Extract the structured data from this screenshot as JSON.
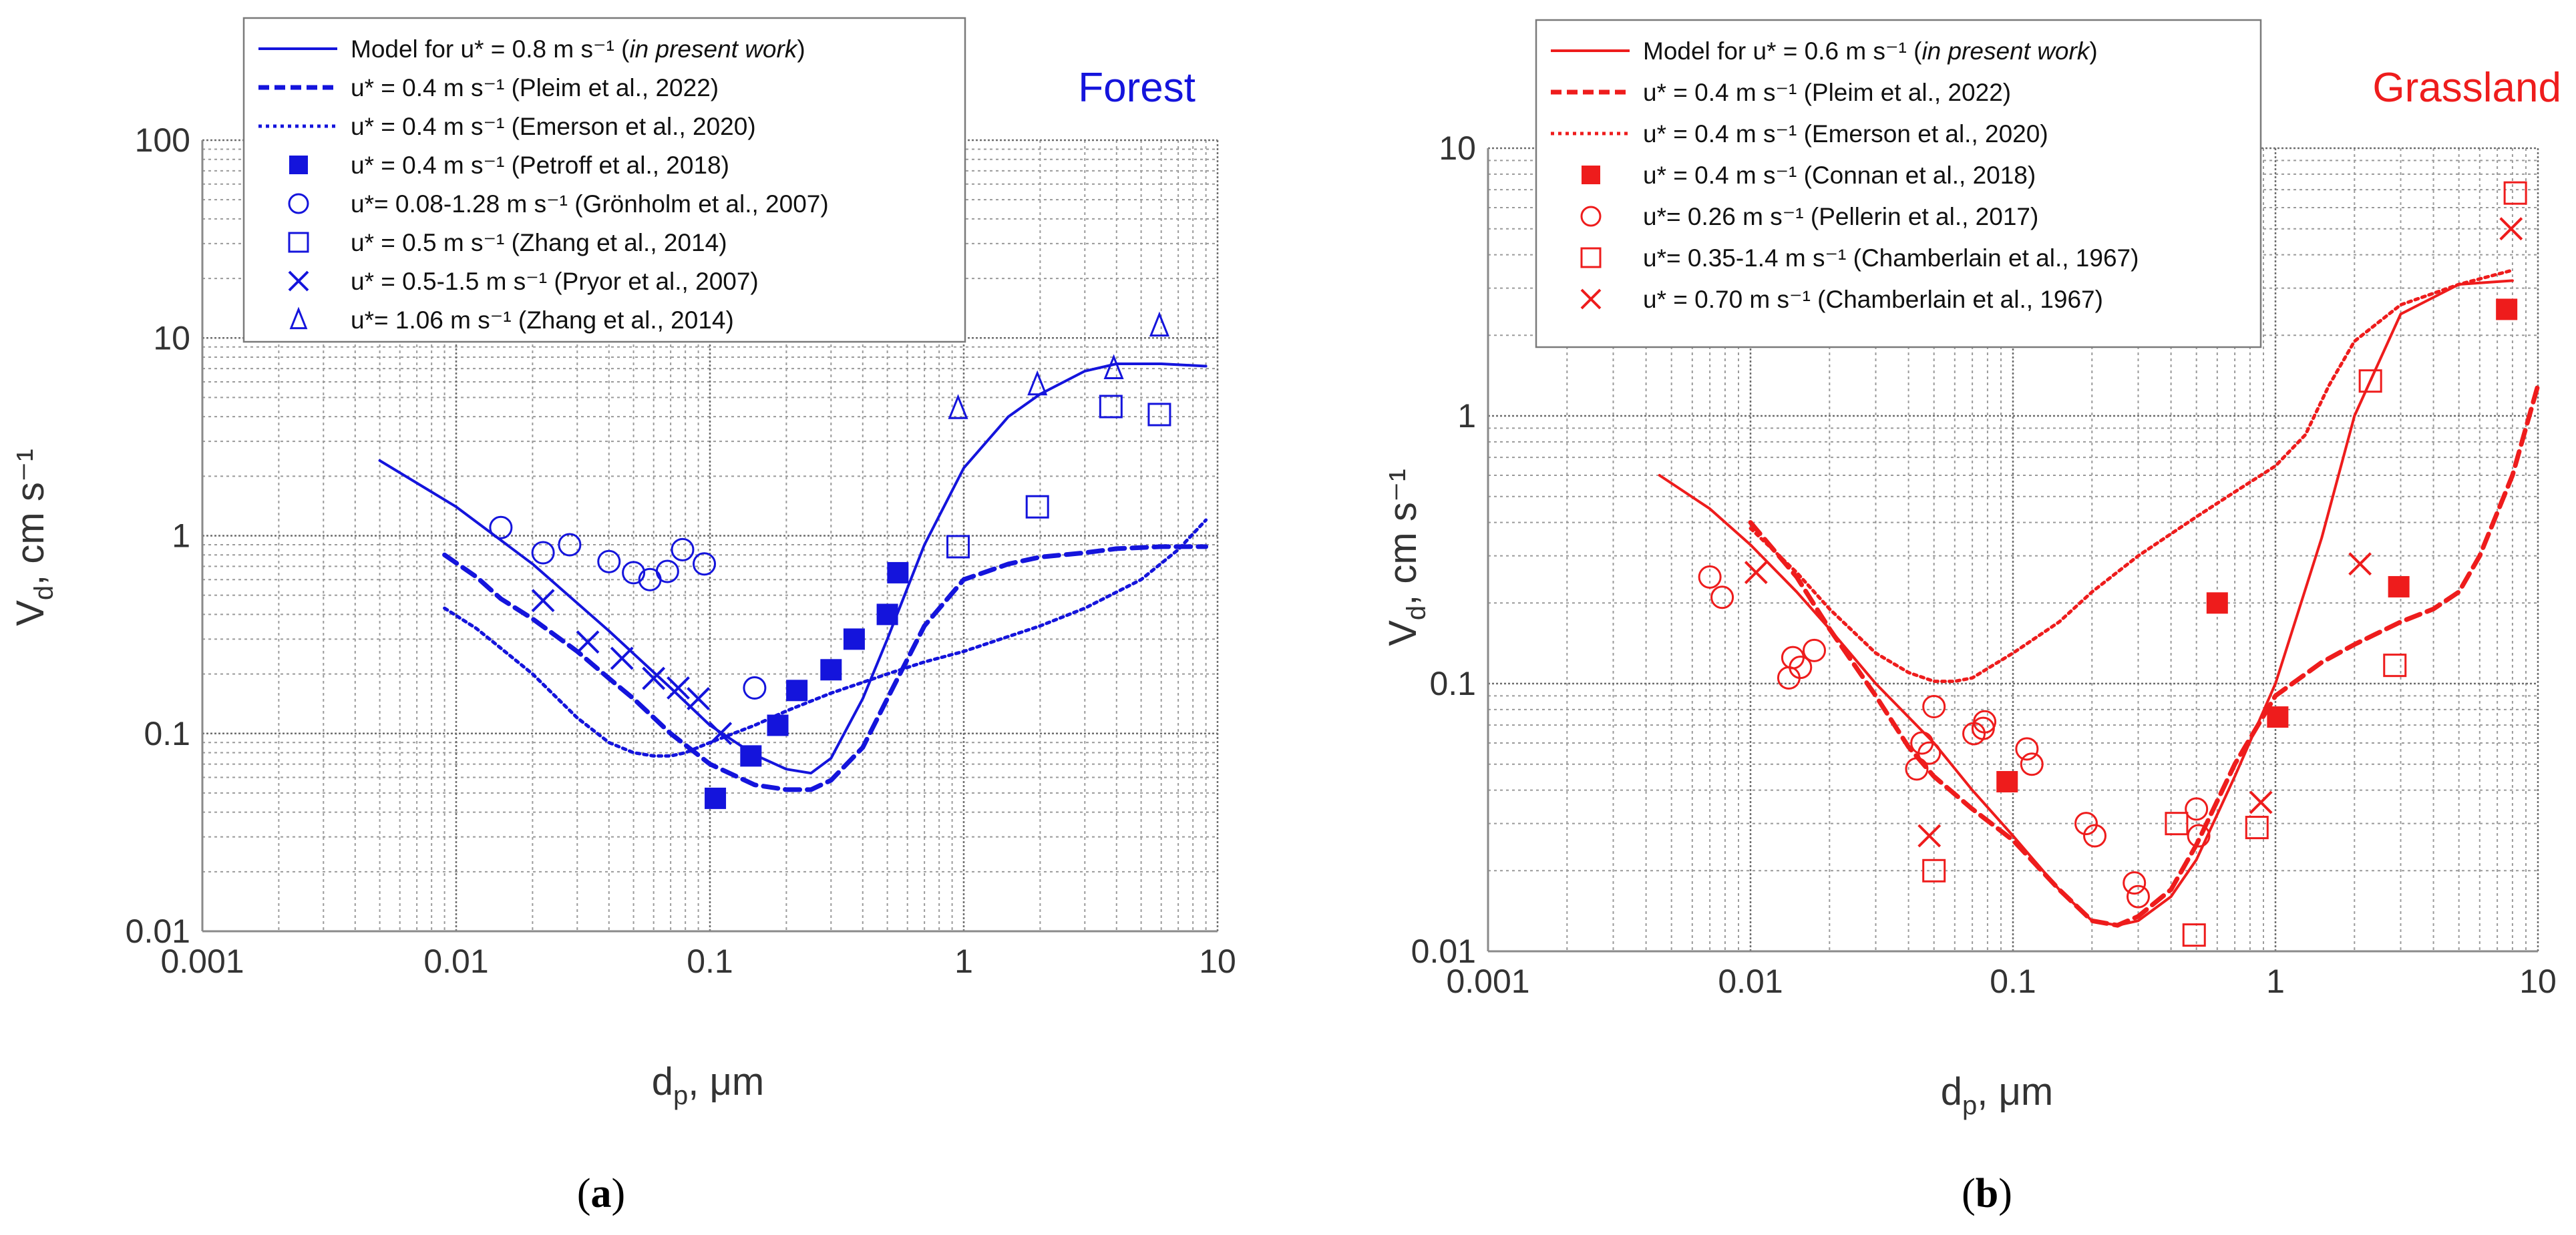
{
  "chart_data": [
    {
      "type": "scatter",
      "panel_label": "a",
      "title": "Forest",
      "color": "#1414dc",
      "xlabel": "d",
      "xlabel_sub": "p",
      "xlabel_unit": ", μm",
      "ylabel": "V",
      "ylabel_sub": "d",
      "ylabel_unit": ", cm s⁻¹",
      "xscale": "log",
      "yscale": "log",
      "xlim": [
        0.001,
        10
      ],
      "ylim": [
        0.01,
        100
      ],
      "x_ticks": [
        {
          "v": 0.001,
          "label": "0.001"
        },
        {
          "v": 0.01,
          "label": "0.01"
        },
        {
          "v": 0.1,
          "label": "0.1"
        },
        {
          "v": 1,
          "label": "1"
        },
        {
          "v": 10,
          "label": "10"
        }
      ],
      "y_ticks": [
        {
          "v": 0.01,
          "label": "0.01"
        },
        {
          "v": 0.1,
          "label": "0.1"
        },
        {
          "v": 1,
          "label": "1"
        },
        {
          "v": 10,
          "label": "10"
        },
        {
          "v": 100,
          "label": "100"
        }
      ],
      "legend_position": "top-left",
      "series": [
        {
          "name": "Model for u* = 0.8 m s⁻¹",
          "note": "in present work",
          "marker": "line-solid",
          "x": [
            0.005,
            0.01,
            0.02,
            0.04,
            0.07,
            0.1,
            0.15,
            0.2,
            0.25,
            0.3,
            0.4,
            0.5,
            0.7,
            1,
            1.5,
            2,
            3,
            4,
            6,
            9
          ],
          "y": [
            2.4,
            1.4,
            0.72,
            0.33,
            0.17,
            0.11,
            0.078,
            0.066,
            0.063,
            0.075,
            0.15,
            0.3,
            0.9,
            2.2,
            4.0,
            5.2,
            6.8,
            7.4,
            7.4,
            7.2
          ]
        },
        {
          "name": "u* = 0.4 m s⁻¹ (Pleim et al., 2022)",
          "marker": "line-dashed",
          "x": [
            0.009,
            0.012,
            0.015,
            0.02,
            0.03,
            0.04,
            0.05,
            0.07,
            0.1,
            0.15,
            0.2,
            0.25,
            0.3,
            0.4,
            0.5,
            0.7,
            1,
            1.5,
            2,
            3,
            4,
            6,
            9
          ],
          "y": [
            0.8,
            0.62,
            0.48,
            0.38,
            0.26,
            0.19,
            0.15,
            0.1,
            0.07,
            0.055,
            0.052,
            0.052,
            0.058,
            0.085,
            0.15,
            0.35,
            0.6,
            0.72,
            0.78,
            0.82,
            0.86,
            0.88,
            0.88
          ]
        },
        {
          "name": "u* = 0.4 m s⁻¹ (Emerson et al., 2020)",
          "marker": "line-dotted",
          "x": [
            0.009,
            0.012,
            0.015,
            0.02,
            0.03,
            0.04,
            0.05,
            0.06,
            0.07,
            0.08,
            0.1,
            0.15,
            0.2,
            0.3,
            0.5,
            0.7,
            1,
            2,
            3,
            5,
            7,
            9
          ],
          "y": [
            0.43,
            0.34,
            0.27,
            0.2,
            0.12,
            0.09,
            0.08,
            0.077,
            0.077,
            0.08,
            0.09,
            0.11,
            0.13,
            0.16,
            0.2,
            0.23,
            0.26,
            0.35,
            0.43,
            0.6,
            0.85,
            1.2
          ]
        },
        {
          "name": "u* = 0.4 m s⁻¹ (Petroff et al., 2018)",
          "marker": "square-filled",
          "x": [
            0.105,
            0.145,
            0.185,
            0.22,
            0.3,
            0.37,
            0.5,
            0.55
          ],
          "y": [
            0.047,
            0.077,
            0.11,
            0.165,
            0.21,
            0.3,
            0.4,
            0.65
          ]
        },
        {
          "name": "u*= 0.08-1.28 m s⁻¹ (Grönholm et al., 2007)",
          "marker": "circle-open",
          "x": [
            0.015,
            0.022,
            0.028,
            0.04,
            0.05,
            0.058,
            0.068,
            0.078,
            0.095,
            0.15
          ],
          "y": [
            1.1,
            0.82,
            0.9,
            0.74,
            0.65,
            0.6,
            0.66,
            0.85,
            0.72,
            0.17
          ]
        },
        {
          "name": "u* = 0.5 m s⁻¹ (Zhang et al., 2014)",
          "marker": "square-open",
          "x": [
            0.95,
            1.95,
            3.8,
            5.9
          ],
          "y": [
            0.88,
            1.4,
            4.5,
            4.1
          ]
        },
        {
          "name": "u* = 0.5-1.5 m s⁻¹ (Pryor et al., 2007)",
          "marker": "cross",
          "x": [
            0.022,
            0.033,
            0.045,
            0.06,
            0.075,
            0.09,
            0.11
          ],
          "y": [
            0.47,
            0.29,
            0.24,
            0.19,
            0.17,
            0.15,
            0.1
          ]
        },
        {
          "name": "u*= 1.06 m s⁻¹ (Zhang et al., 2014)",
          "marker": "triangle-open",
          "x": [
            0.95,
            1.95,
            3.9,
            5.9
          ],
          "y": [
            4.4,
            5.8,
            7.0,
            11.5
          ]
        }
      ]
    },
    {
      "type": "scatter",
      "panel_label": "b",
      "title": "Grassland",
      "color": "#ee1c1c",
      "xlabel": "d",
      "xlabel_sub": "p",
      "xlabel_unit": ", μm",
      "ylabel": "V",
      "ylabel_sub": "d",
      "ylabel_unit": ", cm s⁻¹",
      "xscale": "log",
      "yscale": "log",
      "xlim": [
        0.001,
        10
      ],
      "ylim": [
        0.01,
        10
      ],
      "x_ticks": [
        {
          "v": 0.001,
          "label": "0.001"
        },
        {
          "v": 0.01,
          "label": "0.01"
        },
        {
          "v": 0.1,
          "label": "0.1"
        },
        {
          "v": 1,
          "label": "1"
        },
        {
          "v": 10,
          "label": "10"
        }
      ],
      "y_ticks": [
        {
          "v": 0.01,
          "label": "0.01"
        },
        {
          "v": 0.1,
          "label": "0.1"
        },
        {
          "v": 1,
          "label": "1"
        },
        {
          "v": 10,
          "label": "10"
        }
      ],
      "legend_position": "top-left",
      "series": [
        {
          "name": "Model for u* = 0.6 m s⁻¹",
          "note": "in present work",
          "marker": "line-solid",
          "x": [
            0.0045,
            0.007,
            0.01,
            0.015,
            0.02,
            0.03,
            0.05,
            0.07,
            0.1,
            0.15,
            0.2,
            0.25,
            0.3,
            0.4,
            0.5,
            0.7,
            1,
            1.5,
            2,
            3,
            5,
            8
          ],
          "y": [
            0.6,
            0.45,
            0.33,
            0.22,
            0.16,
            0.1,
            0.06,
            0.04,
            0.027,
            0.017,
            0.013,
            0.0125,
            0.013,
            0.016,
            0.022,
            0.045,
            0.1,
            0.35,
            1.0,
            2.4,
            3.1,
            3.2
          ]
        },
        {
          "name": "u* = 0.4 m s⁻¹ (Pleim et al., 2022)",
          "marker": "line-dashed",
          "x": [
            0.01,
            0.015,
            0.02,
            0.03,
            0.04,
            0.05,
            0.07,
            0.1,
            0.15,
            0.2,
            0.25,
            0.3,
            0.4,
            0.5,
            0.7,
            1,
            1.5,
            2,
            3,
            4,
            5,
            6,
            8,
            10
          ],
          "y": [
            0.4,
            0.25,
            0.16,
            0.09,
            0.058,
            0.045,
            0.034,
            0.026,
            0.017,
            0.013,
            0.0125,
            0.0135,
            0.017,
            0.025,
            0.05,
            0.09,
            0.12,
            0.14,
            0.17,
            0.19,
            0.22,
            0.3,
            0.6,
            1.3
          ]
        },
        {
          "name": "u* = 0.4 m s⁻¹ (Emerson et al., 2020)",
          "marker": "line-dotted",
          "x": [
            0.01,
            0.015,
            0.02,
            0.03,
            0.04,
            0.05,
            0.06,
            0.07,
            0.1,
            0.15,
            0.2,
            0.3,
            0.5,
            0.7,
            1,
            1.3,
            1.6,
            2,
            3,
            5,
            8
          ],
          "y": [
            0.38,
            0.26,
            0.19,
            0.13,
            0.11,
            0.102,
            0.102,
            0.105,
            0.13,
            0.17,
            0.22,
            0.3,
            0.42,
            0.52,
            0.65,
            0.85,
            1.3,
            1.9,
            2.6,
            3.1,
            3.5
          ]
        },
        {
          "name": "u* = 0.4 m s⁻¹ (Connan et al., 2018)",
          "marker": "square-filled",
          "x": [
            0.095,
            0.6,
            1.02,
            2.95,
            7.6
          ],
          "y": [
            0.043,
            0.2,
            0.075,
            0.23,
            2.5
          ]
        },
        {
          "name": "u*= 0.26 m s⁻¹ (Pellerin et al., 2017)",
          "marker": "circle-open",
          "x": [
            0.007,
            0.0078,
            0.014,
            0.0145,
            0.0155,
            0.0175,
            0.043,
            0.045,
            0.048,
            0.05,
            0.071,
            0.077,
            0.078,
            0.113,
            0.118,
            0.19,
            0.205,
            0.29,
            0.3,
            0.5,
            0.51
          ],
          "y": [
            0.25,
            0.21,
            0.105,
            0.125,
            0.115,
            0.133,
            0.048,
            0.06,
            0.055,
            0.082,
            0.065,
            0.068,
            0.072,
            0.057,
            0.05,
            0.03,
            0.027,
            0.018,
            0.016,
            0.034,
            0.027
          ]
        },
        {
          "name": "u*= 0.35-1.4 m s⁻¹ (Chamberlain et al., 1967)",
          "marker": "square-open",
          "x": [
            0.05,
            0.42,
            0.49,
            0.85,
            2.3,
            2.85,
            8.2
          ],
          "y": [
            0.02,
            0.03,
            0.0115,
            0.029,
            1.35,
            0.117,
            6.8
          ]
        },
        {
          "name": "u* = 0.70 m s⁻¹ (Chamberlain et al., 1967)",
          "marker": "cross",
          "x": [
            0.0105,
            0.048,
            0.88,
            2.1,
            7.9
          ],
          "y": [
            0.26,
            0.027,
            0.036,
            0.28,
            5.0
          ]
        }
      ]
    }
  ]
}
